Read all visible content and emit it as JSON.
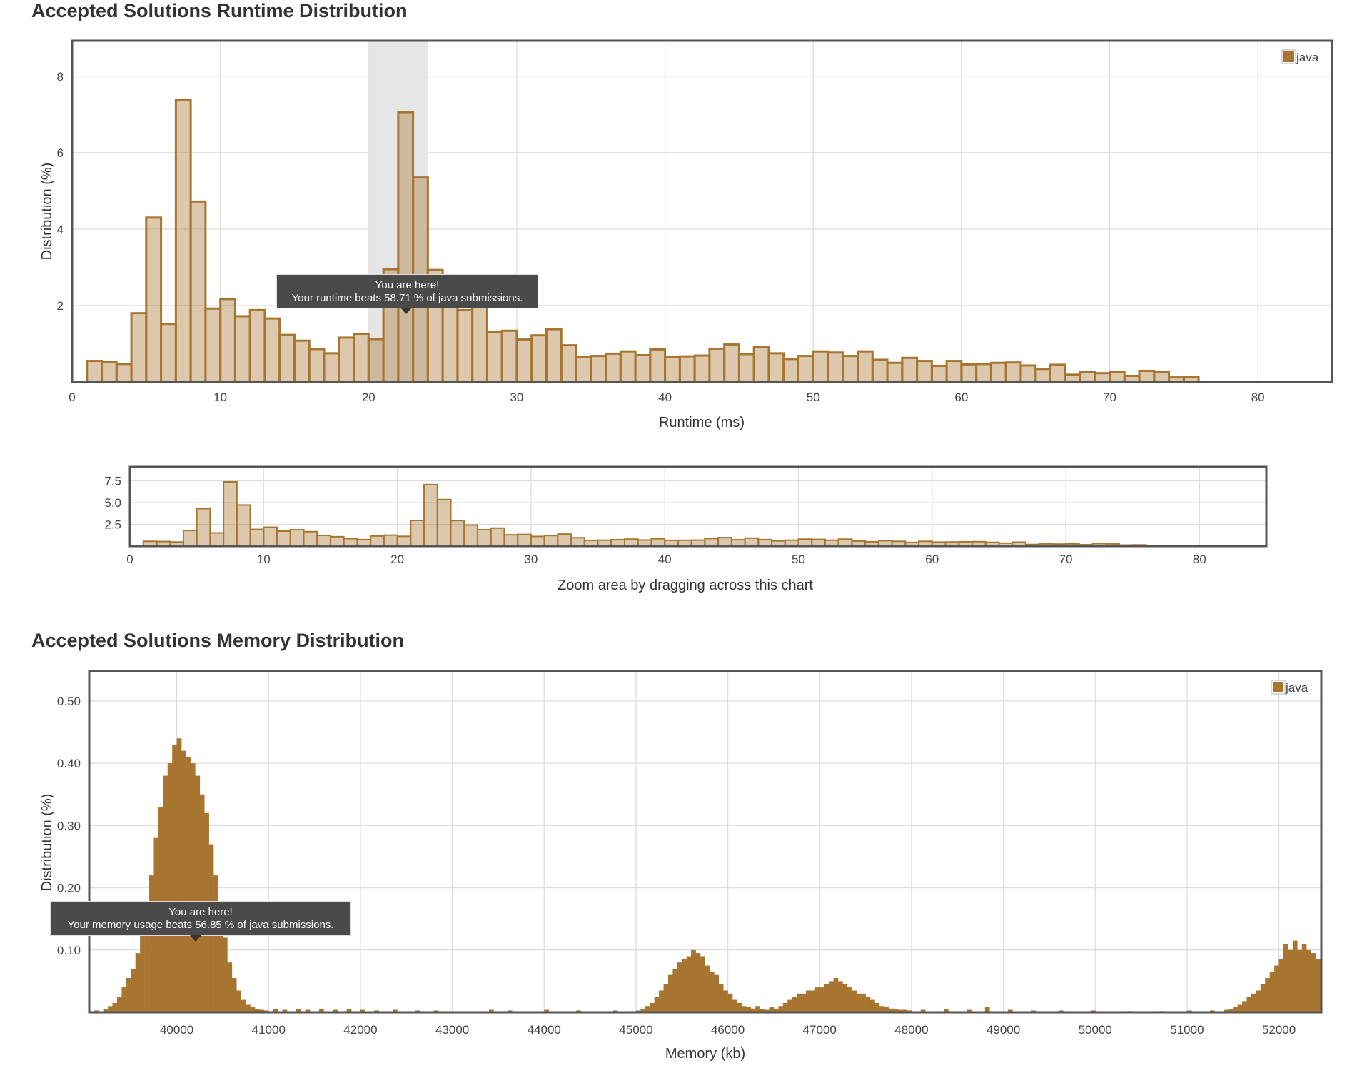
{
  "runtime_title": "Accepted Solutions Runtime Distribution",
  "memory_title": "Accepted Solutions Memory Distribution",
  "runtime_tooltip": {
    "line1": "You are here!",
    "line2": "Your runtime beats 58.71 % of java submissions."
  },
  "memory_tooltip": {
    "line1": "You are here!",
    "line2": "Your memory usage beats 56.85 % of java submissions."
  },
  "colors": {
    "series": "#a87530",
    "highlight": "#e6e6e6",
    "frame": "#555555",
    "grid": "#dddddd"
  },
  "chart_data": [
    {
      "type": "bar",
      "xlabel": "Runtime (ms)",
      "ylabel": "Distribution (%)",
      "xlim": [
        0,
        85
      ],
      "ylim": [
        0,
        8.93
      ],
      "xticks": [
        0,
        10,
        20,
        30,
        40,
        50,
        60,
        70,
        80
      ],
      "yticks": [
        2,
        4,
        6,
        8
      ],
      "grid": true,
      "legend": {
        "entries": [
          "java"
        ],
        "placement": "top-right"
      },
      "highlight_range": [
        20,
        24
      ],
      "you_are_here_x": 22.5,
      "bin_width": 1,
      "bin_start": 1,
      "series": [
        {
          "name": "java",
          "values": [
            0.55,
            0.53,
            0.47,
            1.8,
            4.3,
            1.52,
            7.38,
            4.72,
            1.92,
            2.17,
            1.72,
            1.88,
            1.66,
            1.23,
            1.08,
            0.86,
            0.75,
            1.16,
            1.26,
            1.12,
            2.95,
            7.06,
            5.35,
            2.93,
            2.42,
            1.88,
            2.07,
            1.3,
            1.34,
            1.11,
            1.22,
            1.38,
            0.96,
            0.66,
            0.68,
            0.74,
            0.8,
            0.7,
            0.85,
            0.66,
            0.67,
            0.69,
            0.87,
            0.98,
            0.73,
            0.92,
            0.75,
            0.6,
            0.68,
            0.8,
            0.77,
            0.68,
            0.8,
            0.58,
            0.5,
            0.63,
            0.55,
            0.42,
            0.55,
            0.46,
            0.47,
            0.5,
            0.51,
            0.43,
            0.34,
            0.45,
            0.19,
            0.26,
            0.23,
            0.26,
            0.16,
            0.29,
            0.26,
            0.12,
            0.14
          ]
        }
      ]
    },
    {
      "type": "bar",
      "role": "navigator",
      "xlabel": "Zoom area by dragging across this chart",
      "xlim": [
        0,
        85
      ],
      "ylim": [
        0,
        9.1
      ],
      "xticks": [
        0,
        10,
        20,
        30,
        40,
        50,
        60,
        70,
        80
      ],
      "yticks": [
        "2.5",
        "5.0",
        "7.5"
      ],
      "same_data_as": "runtime"
    },
    {
      "type": "bar",
      "xlabel": "Memory (kb)",
      "ylabel": "Distribution (%)",
      "xlim": [
        39047,
        52462
      ],
      "ylim": [
        0,
        0.548
      ],
      "xticks": [
        40000,
        41000,
        42000,
        43000,
        44000,
        45000,
        46000,
        47000,
        48000,
        49000,
        50000,
        51000,
        52000
      ],
      "yticks": [
        "0.10",
        "0.20",
        "0.30",
        "0.40",
        "0.50"
      ],
      "grid": true,
      "legend": {
        "entries": [
          "java"
        ],
        "placement": "top-right"
      },
      "you_are_here_x": 40200,
      "bin_width": 50,
      "segments": [
        {
          "start": 39100,
          "values": [
            0.003,
            0,
            0.005,
            0.01,
            0.015,
            0.025,
            0.04,
            0.055,
            0.07,
            0.095,
            0.13,
            0.17,
            0.22,
            0.28,
            0.33,
            0.38,
            0.4,
            0.43,
            0.44,
            0.42,
            0.41,
            0.4,
            0.38,
            0.35,
            0.32,
            0.27,
            0.22,
            0.17,
            0.12,
            0.08,
            0.055,
            0.035,
            0.02,
            0.012,
            0.008,
            0.005,
            0.004,
            0.003
          ]
        },
        {
          "start": 45000,
          "values": [
            0.003,
            0.005,
            0.01,
            0.015,
            0.025,
            0.035,
            0.045,
            0.06,
            0.07,
            0.08,
            0.085,
            0.09,
            0.1,
            0.095,
            0.09,
            0.075,
            0.065,
            0.06,
            0.045,
            0.035,
            0.03,
            0.02,
            0.015,
            0.01,
            0.008,
            0.006,
            0.01,
            0.005,
            0.004,
            0.008,
            0.005,
            0.01
          ]
        },
        {
          "start": 46600,
          "values": [
            0.015,
            0.02,
            0.025,
            0.03,
            0.03,
            0.035,
            0.035,
            0.04,
            0.04,
            0.045,
            0.05,
            0.055,
            0.05,
            0.045,
            0.04,
            0.035,
            0.03,
            0.03,
            0.025,
            0.02,
            0.015,
            0.01,
            0.008,
            0.006,
            0.005,
            0.004,
            0.004,
            0.003
          ]
        },
        {
          "start": 51400,
          "values": [
            0.004,
            0.005,
            0.008,
            0.012,
            0.018,
            0.025,
            0.03,
            0.035,
            0.045,
            0.055,
            0.065,
            0.075,
            0.085,
            0.11,
            0.1,
            0.115,
            0.1,
            0.11,
            0.1,
            0.095,
            0.085,
            0.07
          ]
        }
      ],
      "sparse": [
        [
          41050,
          0.005
        ],
        [
          41150,
          0.004
        ],
        [
          41300,
          0.005
        ],
        [
          41400,
          0.004
        ],
        [
          41550,
          0.005
        ],
        [
          41700,
          0.004
        ],
        [
          41850,
          0.005
        ],
        [
          42000,
          0.004
        ],
        [
          42150,
          0.003
        ],
        [
          42350,
          0.004
        ],
        [
          42600,
          0.003
        ],
        [
          42800,
          0.003
        ],
        [
          43400,
          0.004
        ],
        [
          43600,
          0.003
        ],
        [
          44000,
          0.004
        ],
        [
          44350,
          0.003
        ],
        [
          44750,
          0.003
        ],
        [
          48100,
          0.004
        ],
        [
          48350,
          0.005
        ],
        [
          48600,
          0.004
        ],
        [
          48800,
          0.008
        ],
        [
          49050,
          0.004
        ],
        [
          49300,
          0.003
        ],
        [
          49600,
          0.003
        ],
        [
          49950,
          0.003
        ],
        [
          50350,
          0.002
        ],
        [
          50700,
          0.002
        ],
        [
          51000,
          0.003
        ],
        [
          51250,
          0.003
        ]
      ]
    }
  ]
}
